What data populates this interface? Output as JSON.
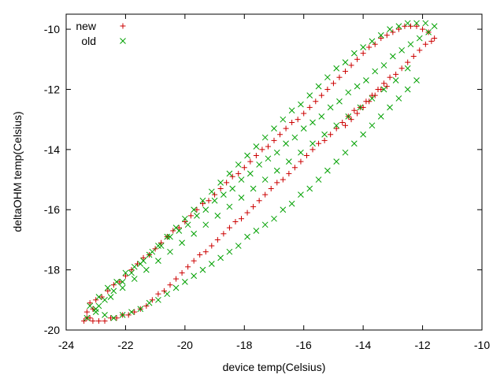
{
  "chart_data": {
    "type": "scatter",
    "xlabel": "device temp(Celsius)",
    "ylabel": "deltaOHM temp(Celsius)",
    "xlim": [
      -24,
      -10
    ],
    "ylim": [
      -20,
      -9.5
    ],
    "xticks": [
      -24,
      -22,
      -20,
      -18,
      -16,
      -14,
      -12,
      -10
    ],
    "yticks": [
      -20,
      -18,
      -16,
      -14,
      -12,
      -10
    ],
    "xtick_labels": [
      "-24",
      "-22",
      "-20",
      "-18",
      "-16",
      "-14",
      "-12",
      "-10"
    ],
    "ytick_labels": [
      "-20",
      "-18",
      "-16",
      "-14",
      "-12",
      "-10"
    ],
    "grid": false,
    "legend_position": "top-left",
    "series": [
      {
        "name": "new",
        "marker": "plus",
        "color": "#cc0000",
        "x": [
          -23.4,
          -23.3,
          -23.2,
          -23.2,
          -23.1,
          -23.0,
          -22.8,
          -22.6,
          -22.4,
          -22.2,
          -22.0,
          -21.8,
          -21.6,
          -21.4,
          -21.2,
          -21.0,
          -20.8,
          -20.6,
          -20.4,
          -20.2,
          -20.0,
          -19.8,
          -19.6,
          -19.4,
          -19.2,
          -19.0,
          -18.8,
          -18.6,
          -18.4,
          -18.2,
          -18.0,
          -17.8,
          -17.6,
          -17.4,
          -17.2,
          -17.0,
          -16.8,
          -16.6,
          -16.4,
          -16.2,
          -16.0,
          -15.8,
          -15.6,
          -15.4,
          -15.2,
          -15.0,
          -14.8,
          -14.6,
          -14.4,
          -14.2,
          -14.0,
          -13.8,
          -13.6,
          -13.4,
          -13.2,
          -13.0,
          -12.8,
          -12.6,
          -12.4,
          -12.2,
          -12.0,
          -11.8,
          -11.6,
          -11.7,
          -11.9,
          -12.1,
          -12.3,
          -12.5,
          -12.7,
          -12.9,
          -13.1,
          -13.3,
          -13.5,
          -13.7,
          -13.9,
          -14.1,
          -14.3,
          -14.5,
          -14.7,
          -14.9,
          -15.1,
          -15.3,
          -15.5,
          -15.7,
          -15.9,
          -16.1,
          -16.3,
          -16.5,
          -16.7,
          -16.9,
          -17.1,
          -17.3,
          -17.5,
          -17.7,
          -17.9,
          -18.1,
          -18.3,
          -18.5,
          -18.7,
          -18.9,
          -19.1,
          -19.3,
          -19.5,
          -19.7,
          -19.9,
          -20.1,
          -20.3,
          -20.5,
          -20.7,
          -20.9,
          -21.1,
          -21.3,
          -21.5,
          -21.7,
          -21.9,
          -22.1,
          -22.3,
          -22.5,
          -22.7,
          -22.9,
          -23.1,
          -23.3,
          -13.2,
          -13.4,
          -13.6,
          -13.8,
          -14.0,
          -14.2,
          -14.4,
          -14.6
        ],
        "y": [
          -19.7,
          -19.4,
          -19.1,
          -19.6,
          -19.3,
          -19.0,
          -18.9,
          -18.7,
          -18.5,
          -18.4,
          -18.2,
          -18.0,
          -17.8,
          -17.6,
          -17.5,
          -17.3,
          -17.1,
          -16.9,
          -16.7,
          -16.6,
          -16.4,
          -16.2,
          -16.0,
          -15.8,
          -15.7,
          -15.5,
          -15.3,
          -15.1,
          -14.9,
          -14.8,
          -14.6,
          -14.4,
          -14.2,
          -14.0,
          -13.9,
          -13.7,
          -13.5,
          -13.3,
          -13.1,
          -13.0,
          -12.8,
          -12.6,
          -12.4,
          -12.2,
          -12.0,
          -11.8,
          -11.6,
          -11.4,
          -11.2,
          -11.0,
          -10.8,
          -10.6,
          -10.5,
          -10.3,
          -10.2,
          -10.1,
          -10.0,
          -9.9,
          -9.9,
          -9.9,
          -10.0,
          -10.1,
          -10.3,
          -10.4,
          -10.5,
          -10.7,
          -10.9,
          -11.1,
          -11.3,
          -11.5,
          -11.6,
          -11.8,
          -12.0,
          -12.2,
          -12.4,
          -12.6,
          -12.7,
          -12.9,
          -13.1,
          -13.3,
          -13.5,
          -13.7,
          -13.8,
          -14.0,
          -14.2,
          -14.4,
          -14.6,
          -14.8,
          -15.0,
          -15.1,
          -15.3,
          -15.5,
          -15.7,
          -15.9,
          -16.1,
          -16.3,
          -16.4,
          -16.6,
          -16.8,
          -17.0,
          -17.2,
          -17.4,
          -17.5,
          -17.7,
          -17.9,
          -18.1,
          -18.3,
          -18.5,
          -18.7,
          -18.8,
          -19.0,
          -19.2,
          -19.3,
          -19.4,
          -19.5,
          -19.5,
          -19.6,
          -19.6,
          -19.7,
          -19.7,
          -19.7,
          -19.6,
          -11.9,
          -12.0,
          -12.2,
          -12.4,
          -12.6,
          -12.8,
          -13.0,
          -13.2
        ]
      },
      {
        "name": "old",
        "marker": "cross",
        "color": "#00a000",
        "x": [
          -23.3,
          -23.0,
          -22.7,
          -22.4,
          -22.1,
          -21.8,
          -21.5,
          -21.2,
          -20.9,
          -20.6,
          -20.3,
          -20.0,
          -19.7,
          -19.4,
          -19.1,
          -18.8,
          -18.5,
          -18.2,
          -17.9,
          -17.6,
          -17.3,
          -17.0,
          -16.7,
          -16.4,
          -16.1,
          -15.8,
          -15.5,
          -15.2,
          -14.9,
          -14.6,
          -14.3,
          -14.0,
          -13.7,
          -13.4,
          -13.1,
          -12.8,
          -12.5,
          -12.2,
          -11.9,
          -11.6,
          -11.8,
          -12.1,
          -12.4,
          -12.7,
          -13.0,
          -13.3,
          -13.6,
          -13.9,
          -14.2,
          -14.5,
          -14.8,
          -15.1,
          -15.4,
          -15.7,
          -16.0,
          -16.3,
          -16.6,
          -16.9,
          -17.2,
          -17.5,
          -17.8,
          -18.1,
          -18.4,
          -18.7,
          -19.0,
          -19.3,
          -19.6,
          -19.9,
          -20.2,
          -20.5,
          -20.8,
          -21.1,
          -21.4,
          -21.7,
          -22.0,
          -22.3,
          -22.6,
          -22.9,
          -23.2,
          -23.0,
          -22.7,
          -22.4,
          -22.1,
          -21.8,
          -21.5,
          -21.2,
          -20.9,
          -20.6,
          -20.3,
          -20.0,
          -19.7,
          -19.4,
          -19.1,
          -18.8,
          -18.5,
          -18.2,
          -17.9,
          -17.6,
          -17.3,
          -17.0,
          -16.7,
          -16.4,
          -16.1,
          -15.8,
          -15.5,
          -15.2,
          -14.9,
          -14.6,
          -14.3,
          -14.0,
          -13.7,
          -13.4,
          -13.1,
          -12.8,
          -12.5,
          -12.2,
          -12.5,
          -12.9,
          -13.3,
          -13.7,
          -14.1,
          -14.5,
          -14.9,
          -15.3,
          -15.7,
          -16.1,
          -16.5,
          -16.9,
          -17.3,
          -17.7,
          -18.1,
          -18.5,
          -18.9,
          -19.3,
          -19.7,
          -20.1,
          -20.5,
          -20.9,
          -21.3,
          -21.7,
          -22.1,
          -22.5,
          -22.9
        ],
        "y": [
          -19.6,
          -19.3,
          -19.0,
          -18.7,
          -18.4,
          -18.1,
          -17.8,
          -17.5,
          -17.2,
          -16.9,
          -16.6,
          -16.3,
          -16.0,
          -15.7,
          -15.4,
          -15.1,
          -14.8,
          -14.5,
          -14.2,
          -13.9,
          -13.6,
          -13.3,
          -13.0,
          -12.7,
          -12.5,
          -12.2,
          -11.9,
          -11.6,
          -11.3,
          -11.1,
          -10.8,
          -10.6,
          -10.4,
          -10.2,
          -10.0,
          -9.9,
          -9.8,
          -9.8,
          -9.8,
          -9.9,
          -10.1,
          -10.3,
          -10.5,
          -10.7,
          -10.9,
          -11.2,
          -11.4,
          -11.7,
          -11.9,
          -12.1,
          -12.4,
          -12.6,
          -12.9,
          -13.1,
          -13.3,
          -13.6,
          -13.8,
          -14.1,
          -14.3,
          -14.5,
          -14.8,
          -15.0,
          -15.3,
          -15.5,
          -15.7,
          -16.0,
          -16.2,
          -16.5,
          -16.7,
          -16.9,
          -17.2,
          -17.4,
          -17.7,
          -17.9,
          -18.1,
          -18.4,
          -18.6,
          -18.9,
          -19.2,
          -19.4,
          -19.5,
          -19.6,
          -19.5,
          -19.4,
          -19.3,
          -19.1,
          -19.0,
          -18.8,
          -18.6,
          -18.4,
          -18.2,
          -18.0,
          -17.8,
          -17.6,
          -17.4,
          -17.2,
          -16.9,
          -16.7,
          -16.5,
          -16.3,
          -16.0,
          -15.8,
          -15.5,
          -15.3,
          -15.0,
          -14.7,
          -14.4,
          -14.1,
          -13.8,
          -13.5,
          -13.2,
          -12.9,
          -12.6,
          -12.3,
          -12.0,
          -11.7,
          -11.3,
          -11.7,
          -12.0,
          -12.3,
          -12.6,
          -12.9,
          -13.2,
          -13.5,
          -13.8,
          -14.1,
          -14.4,
          -14.7,
          -15.0,
          -15.3,
          -15.6,
          -15.9,
          -16.2,
          -16.5,
          -16.8,
          -17.1,
          -17.4,
          -17.7,
          -18.0,
          -18.3,
          -18.6,
          -18.9,
          -19.2
        ]
      }
    ]
  }
}
